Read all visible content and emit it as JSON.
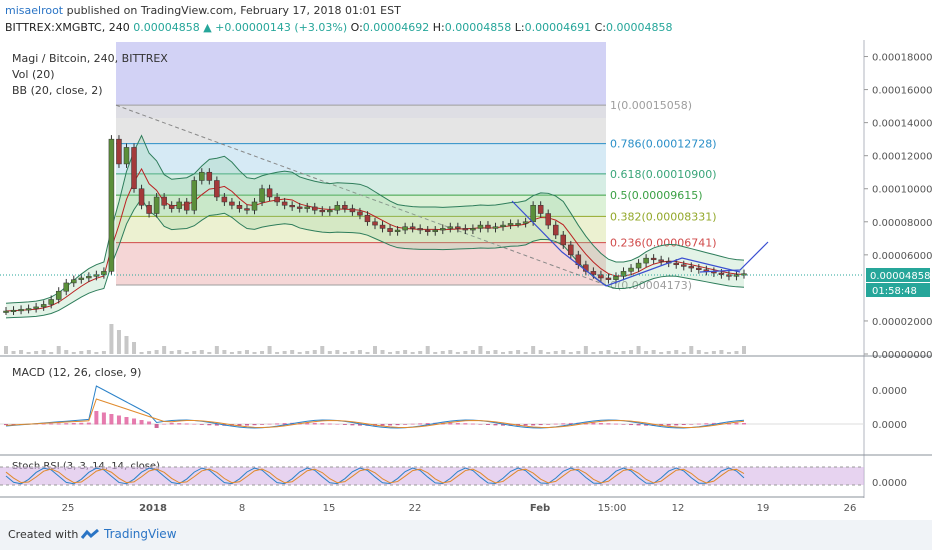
{
  "header": {
    "author": "misaelroot",
    "published_text": "published on TradingView.com, February 17, 2018 01:01 EST",
    "symbol": "BITTREX:XMGBTC, 240",
    "last": "0.00004858",
    "change": "+0.00000143 (+3.03%)",
    "ohlc": [
      {
        "label": "O:",
        "value": "0.00004692"
      },
      {
        "label": "H:",
        "value": "0.00004858"
      },
      {
        "label": "L:",
        "value": "0.00004691"
      },
      {
        "label": "C:",
        "value": "0.00004858"
      }
    ]
  },
  "legend": {
    "title": "Magi / Bitcoin, 240, BITTREX",
    "vol": "Vol (20)",
    "bb": "BB (20, close, 2)",
    "macd": "MACD (12, 26, close, 9)",
    "stoch": "Stoch RSI (3, 3, 14, 14, close)"
  },
  "chart_data": {
    "type": "candlestick",
    "price_axis": {
      "range": [
        0,
        0.00019
      ],
      "ticks": [
        "0.00018000",
        "0.00016000",
        "0.00014000",
        "0.00012000",
        "0.00010000",
        "0.00008000",
        "0.00006000",
        "0.00004858",
        "0.00002000",
        "0.00000000"
      ]
    },
    "macd_axis_ticks": [
      "0.0000",
      "0.0000"
    ],
    "stoch_axis_ticks": [
      "0.0000"
    ],
    "time_axis": {
      "ticks": [
        "25",
        "2018",
        "8",
        "15",
        "22",
        "Feb",
        "15:00",
        "12",
        "19",
        "26"
      ]
    },
    "countdown": "01:58:48",
    "fib_levels": [
      {
        "ratio": 1,
        "label": "1(0.00015058)",
        "price": 0.00015058,
        "color": "#9e9e9e"
      },
      {
        "ratio": 0.786,
        "label": "0.786(0.00012728)",
        "price": 0.00012728,
        "color": "#2a8fc8"
      },
      {
        "ratio": 0.618,
        "label": "0.618(0.00010900)",
        "price": 0.000109,
        "color": "#3aa57a"
      },
      {
        "ratio": 0.5,
        "label": "0.5(0.00009615)",
        "price": 9.615e-05,
        "color": "#3aa044"
      },
      {
        "ratio": 0.382,
        "label": "0.382(0.00008331)",
        "price": 8.331e-05,
        "color": "#93a82a"
      },
      {
        "ratio": 0.236,
        "label": "0.236(0.00006741)",
        "price": 6.741e-05,
        "color": "#d04a4a"
      },
      {
        "ratio": 0,
        "label": "0(0.00004173)",
        "price": 4.173e-05,
        "color": "#9e9e9e"
      }
    ],
    "price_series": [
      2.6e-05,
      2.65e-05,
      2.7e-05,
      2.75e-05,
      2.85e-05,
      3e-05,
      3.3e-05,
      3.8e-05,
      4.3e-05,
      4.5e-05,
      4.6e-05,
      4.7e-05,
      4.8e-05,
      5e-05,
      0.00013,
      0.000115,
      0.000125,
      0.0001,
      9e-05,
      8.5e-05,
      9.5e-05,
      9e-05,
      8.8e-05,
      9.2e-05,
      8.7e-05,
      0.000105,
      0.00011,
      0.000105,
      9.5e-05,
      9.2e-05,
      9e-05,
      8.8e-05,
      8.7e-05,
      9.2e-05,
      0.0001,
      9.5e-05,
      9.2e-05,
      9e-05,
      8.9e-05,
      8.8e-05,
      8.9e-05,
      8.7e-05,
      8.6e-05,
      8.7e-05,
      9e-05,
      8.8e-05,
      8.6e-05,
      8.4e-05,
      8e-05,
      7.8e-05,
      7.6e-05,
      7.4e-05,
      7.5e-05,
      7.7e-05,
      7.6e-05,
      7.5e-05,
      7.4e-05,
      7.5e-05,
      7.6e-05,
      7.7e-05,
      7.6e-05,
      7.5e-05,
      7.6e-05,
      7.8e-05,
      7.6e-05,
      7.7e-05,
      7.8e-05,
      7.9e-05,
      7.9e-05,
      8e-05,
      9e-05,
      8.5e-05,
      7.8e-05,
      7.2e-05,
      6.6e-05,
      6e-05,
      5.4e-05,
      5e-05,
      4.8e-05,
      4.6e-05,
      4.5e-05,
      4.7e-05,
      5e-05,
      5.2e-05,
      5.5e-05,
      5.8e-05,
      5.7e-05,
      5.6e-05,
      5.5e-05,
      5.4e-05,
      5.3e-05,
      5.2e-05,
      5.1e-05,
      5e-05,
      4.9e-05,
      4.8e-05,
      4.7e-05,
      4.8e-05,
      4.86e-05
    ]
  },
  "footer": {
    "created_with": "Created with",
    "brand": "TradingView"
  }
}
